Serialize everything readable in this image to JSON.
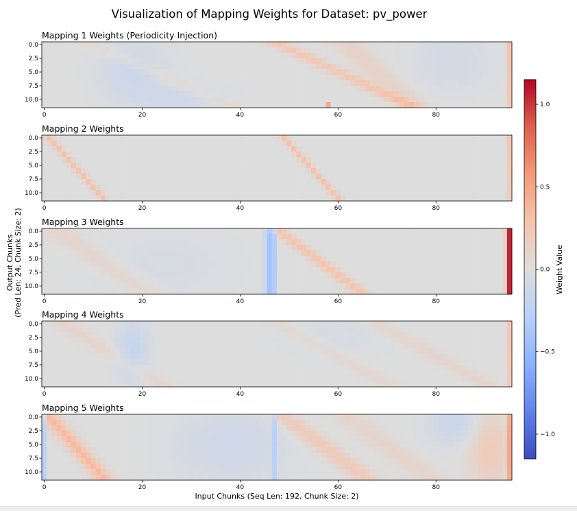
{
  "chart_data": {
    "type": "heatmap",
    "title": "Visualization of Mapping Weights for Dataset: pv_power",
    "xlabel": "Input Chunks (Seq Len: 192, Chunk Size: 2)",
    "ylabel_line1": "Output Chunks",
    "ylabel_line2": "(Pred Len: 24, Chunk Size: 2)",
    "grid": false,
    "rows": 12,
    "cols": 96,
    "xlim": [
      -0.5,
      95.5
    ],
    "ylim": [
      -0.5,
      11.5
    ],
    "xticks": [
      0,
      20,
      40,
      60,
      80
    ],
    "xtick_labels": [
      "0",
      "20",
      "40",
      "60",
      "80"
    ],
    "yticks": [
      0,
      2.5,
      5,
      7.5,
      10
    ],
    "ytick_labels": [
      "0.0",
      "2.5",
      "5.0",
      "7.5",
      "10.0"
    ],
    "colormap": "coolwarm",
    "colorbar": {
      "label": "Weight Value",
      "vmin": -1.15,
      "vmax": 1.15,
      "ticks": [
        1.0,
        0.5,
        0.0,
        -0.5,
        -1.0
      ],
      "tick_labels": [
        "1.0",
        "0.5",
        "0.0",
        "−0.5",
        "−1.0"
      ]
    },
    "panels": [
      {
        "title": "Mapping 1 Weights (Periodicity Injection)",
        "estimated_pattern": {
          "diagonals": [
            {
              "start_col": 48,
              "slope": 2.4,
              "amp": 0.25,
              "width": 1.6
            },
            {
              "start_col": 62,
              "slope": 1.2,
              "amp": 0.12,
              "width": 2.5
            },
            {
              "start_col": 10,
              "slope": 2.5,
              "amp": 0.08,
              "width": 2.0
            }
          ],
          "blobs": [
            {
              "col": 18,
              "row": 5,
              "amp": -0.13,
              "sc": 5,
              "sr": 4
            },
            {
              "col": 28,
              "row": 10,
              "amp": -0.1,
              "sc": 6,
              "sr": 2
            },
            {
              "col": 83,
              "row": 3,
              "amp": -0.08,
              "sc": 6,
              "sr": 4
            }
          ],
          "column_offsets": [
            {
              "col": 95,
              "amp": 0.3,
              "row_fade": 0.25
            }
          ],
          "cells": [
            {
              "col": 58,
              "row": 11,
              "amp": 0.45
            }
          ]
        }
      },
      {
        "title": "Mapping 2 Weights",
        "estimated_pattern": {
          "diagonals": [
            {
              "start_col": 1,
              "slope": 1.0,
              "amp": 0.3,
              "width": 0.6
            },
            {
              "start_col": 49,
              "slope": 1.0,
              "amp": 0.3,
              "width": 0.6
            }
          ],
          "blobs": [],
          "column_offsets": [
            {
              "col": 95,
              "amp": 0.25,
              "row_fade": 0.3
            }
          ],
          "cells": []
        }
      },
      {
        "title": "Mapping 3 Weights",
        "estimated_pattern": {
          "diagonals": [
            {
              "start_col": 48,
              "slope": 1.5,
              "amp": 0.28,
              "width": 1.2
            },
            {
              "start_col": 3,
              "slope": 1.6,
              "amp": 0.1,
              "width": 2.5
            }
          ],
          "blobs": [
            {
              "col": 25,
              "row": 6,
              "amp": -0.05,
              "sc": 10,
              "sr": 5
            }
          ],
          "column_offsets": [
            {
              "col": 46,
              "amp": -0.4,
              "row_fade": 0
            },
            {
              "col": 47,
              "amp": -0.32,
              "row_fade": 0
            },
            {
              "col": 45,
              "amp": -0.12,
              "row_fade": 0
            },
            {
              "col": 95,
              "amp": 1.05,
              "row_fade": 0
            },
            {
              "col": 94,
              "amp": 0.1,
              "row_fade": 0
            }
          ],
          "cells": []
        }
      },
      {
        "title": "Mapping 4 Weights",
        "estimated_pattern": {
          "diagonals": [
            {
              "start_col": 4,
              "slope": 1.8,
              "amp": 0.1,
              "width": 2.0
            },
            {
              "start_col": 48,
              "slope": 2.0,
              "amp": 0.08,
              "width": 2.0
            },
            {
              "start_col": 68,
              "slope": 2.0,
              "amp": 0.1,
              "width": 2.0
            }
          ],
          "blobs": [
            {
              "col": 18,
              "row": 5,
              "amp": -0.18,
              "sc": 2.5,
              "sr": 4
            },
            {
              "col": 60,
              "row": 2,
              "amp": -0.05,
              "sc": 8,
              "sr": 3
            }
          ],
          "column_offsets": [
            {
              "col": 95,
              "amp": 0.25,
              "row_fade": 0.2
            }
          ],
          "cells": []
        }
      },
      {
        "title": "Mapping 5 Weights",
        "estimated_pattern": {
          "diagonals": [
            {
              "start_col": 1,
              "slope": 1.0,
              "amp": 0.35,
              "width": 1.4
            },
            {
              "start_col": 49,
              "slope": 1.5,
              "amp": 0.22,
              "width": 2.0
            },
            {
              "start_col": 62,
              "slope": 1.5,
              "amp": 0.1,
              "width": 2.5
            }
          ],
          "blobs": [
            {
              "col": 38,
              "row": 5,
              "amp": -0.12,
              "sc": 8,
              "sr": 5
            },
            {
              "col": 84,
              "row": 1,
              "amp": -0.15,
              "sc": 4,
              "sr": 3
            },
            {
              "col": 91,
              "row": 6,
              "amp": 0.22,
              "sc": 3,
              "sr": 5
            }
          ],
          "column_offsets": [
            {
              "col": 0,
              "amp": -0.25,
              "row_fade": 0
            },
            {
              "col": 47,
              "amp": -0.22,
              "row_fade": 0
            },
            {
              "col": 95,
              "amp": 0.4,
              "row_fade": 0
            }
          ],
          "cells": []
        }
      }
    ]
  }
}
